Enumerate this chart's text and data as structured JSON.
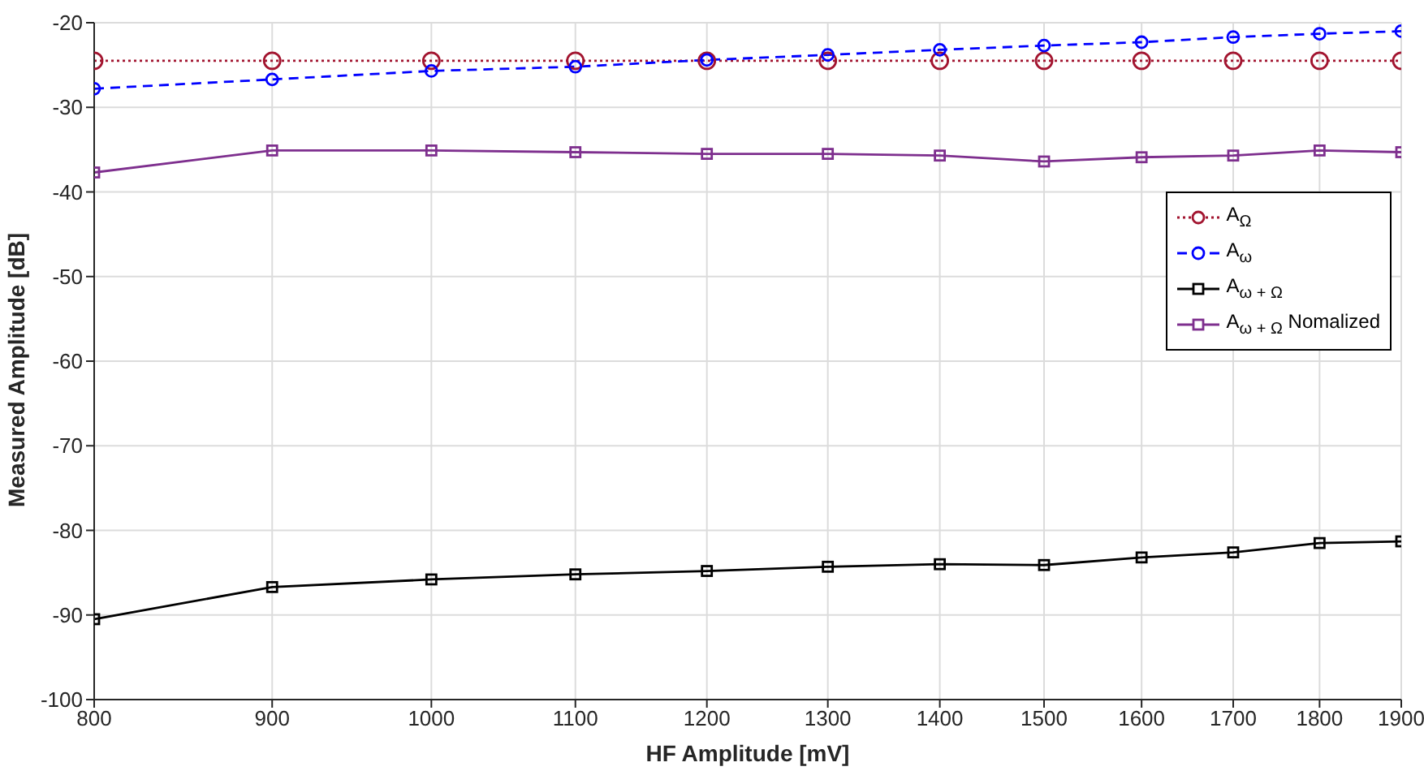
{
  "chart_data": {
    "type": "line",
    "xlabel": "HF Amplitude [mV]",
    "ylabel": "Measured Amplitude [dB]",
    "x": [
      800,
      900,
      1000,
      1100,
      1200,
      1300,
      1400,
      1500,
      1600,
      1700,
      1800,
      1900
    ],
    "log": "x",
    "xlim": [
      800,
      1900
    ],
    "xticks": [
      800,
      900,
      1000,
      1100,
      1200,
      1300,
      1400,
      1500,
      1600,
      1700,
      1800,
      1900
    ],
    "ylim": [
      -100,
      -20
    ],
    "yticks": [
      -100,
      -90,
      -80,
      -70,
      -60,
      -50,
      -40,
      -30,
      -20
    ],
    "grid": true,
    "legend": "right",
    "series": [
      {
        "name": "A$_{Ω}$",
        "color": "#a2142f",
        "marker": "circle",
        "line_style": "dotted",
        "values": [
          -24.5,
          -24.5,
          -24.5,
          -24.5,
          -24.5,
          -24.5,
          -24.5,
          -24.5,
          -24.5,
          -24.5,
          -24.5,
          -24.5
        ]
      },
      {
        "name": "A$_{ω}$",
        "color": "#0000ff",
        "marker": "circle",
        "line_style": "dashed",
        "values": [
          -27.8,
          -26.7,
          -25.7,
          -25.2,
          -24.4,
          -23.8,
          -23.2,
          -22.7,
          -22.3,
          -21.7,
          -21.3,
          -21.0
        ]
      },
      {
        "name": "A$_{ω + Ω}$",
        "color": "#000000",
        "marker": "square",
        "line_style": "solid",
        "values": [
          -90.5,
          -86.7,
          -85.8,
          -85.2,
          -84.8,
          -84.3,
          -84.0,
          -84.1,
          -83.2,
          -82.6,
          -81.5,
          -81.3
        ]
      },
      {
        "name": "A$_{ω + Ω}$ Nomalized",
        "color": "#7e2f8e",
        "marker": "square",
        "line_style": "solid",
        "values": [
          -37.7,
          -35.1,
          -35.1,
          -35.3,
          -35.5,
          -35.5,
          -35.7,
          -36.4,
          -35.9,
          -35.7,
          -35.1,
          -35.3
        ]
      }
    ]
  }
}
